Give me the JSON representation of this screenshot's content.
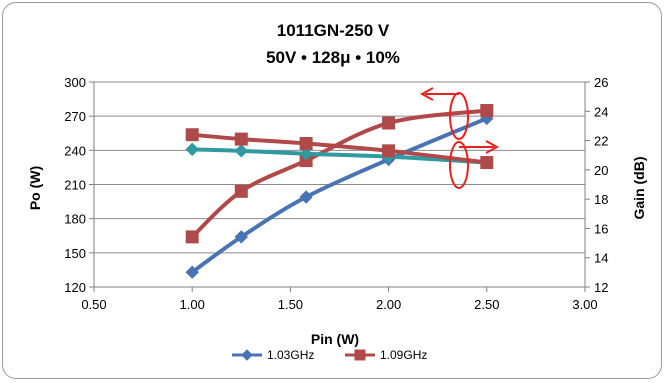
{
  "chart_data": {
    "type": "line",
    "title": "1011GN-250 V",
    "subtitle": "50V • 128μ • 10%",
    "xlabel": "Pin (W)",
    "ylabel": "Po (W)",
    "y2label": "Gain (dB)",
    "xlim": [
      0.5,
      3.0
    ],
    "ylim": [
      120,
      300
    ],
    "y2lim": [
      12,
      26
    ],
    "x_ticks": [
      "0.50",
      "1.00",
      "1.50",
      "2.00",
      "2.50",
      "3.00"
    ],
    "y_ticks": [
      "120",
      "150",
      "180",
      "210",
      "240",
      "270",
      "300"
    ],
    "y2_ticks": [
      "12",
      "14",
      "16",
      "18",
      "20",
      "22",
      "24",
      "26"
    ],
    "grid": "horizontal",
    "legend_position": "bottom",
    "series": [
      {
        "name": "1.03GHz",
        "axis": "left",
        "color": "#4a73b3",
        "marker": "diamond",
        "x": [
          1.0,
          1.25,
          1.58,
          2.0,
          2.5
        ],
        "y": [
          133,
          164,
          199,
          232,
          268
        ]
      },
      {
        "name": "1.09GHz",
        "axis": "left",
        "color": "#b04a4a",
        "marker": "square",
        "x": [
          1.0,
          1.25,
          1.58,
          2.0,
          2.5
        ],
        "y": [
          164,
          204,
          231,
          264,
          275
        ]
      },
      {
        "name": "1.03GHz",
        "axis": "right",
        "color": "#2f9aa0",
        "marker": "diamond",
        "x": [
          1.0,
          1.25,
          1.58,
          2.0,
          2.5
        ],
        "y": [
          21.4,
          21.3,
          21.1,
          20.9,
          20.5
        ]
      },
      {
        "name": "1.09GHz",
        "axis": "right",
        "color": "#b04a4a",
        "marker": "square",
        "x": [
          1.0,
          1.25,
          1.58,
          2.0,
          2.5
        ],
        "y": [
          22.4,
          22.1,
          21.8,
          21.3,
          20.5
        ]
      }
    ],
    "legend": [
      {
        "label": "1.03GHz",
        "color": "#4a73b3",
        "marker": "diamond"
      },
      {
        "label": "1.09GHz",
        "color": "#b04a4a",
        "marker": "square"
      }
    ],
    "annotation_color": "#e8231f"
  }
}
